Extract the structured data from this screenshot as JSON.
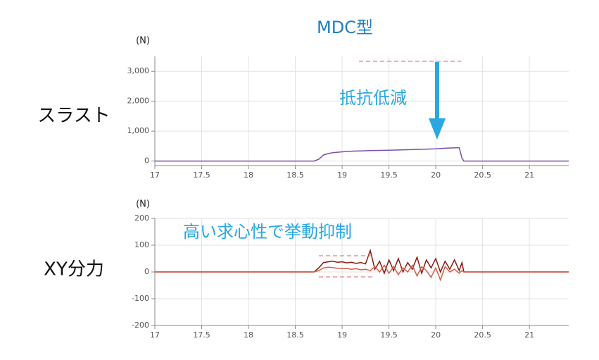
{
  "title": "MDC型",
  "chart_data": [
    {
      "type": "line",
      "label": "スラスト",
      "y_unit": "(N)",
      "annotation": "抵抗低減",
      "x": [
        17,
        18.7,
        18.75,
        18.8,
        18.85,
        18.9,
        19.0,
        19.1,
        19.2,
        19.3,
        19.5,
        19.7,
        19.8,
        20.0,
        20.1,
        20.2,
        20.25,
        20.28,
        20.3,
        21.42
      ],
      "series": [
        {
          "color": "#7b4fa8",
          "values": [
            0,
            0,
            60,
            200,
            250,
            280,
            310,
            330,
            340,
            350,
            360,
            380,
            390,
            410,
            430,
            440,
            450,
            100,
            0,
            0
          ]
        }
      ],
      "xlim": [
        17,
        21.42
      ],
      "ylim": [
        -150,
        3500
      ],
      "xticks": [
        17,
        17.5,
        18,
        18.5,
        19,
        19.5,
        20,
        20.5,
        21
      ],
      "yticks": [
        0,
        {
          "value": 1000,
          "label": "1,000"
        },
        {
          "value": 2000,
          "label": "2,000"
        },
        {
          "value": 3000,
          "label": "3,000"
        }
      ],
      "grid": true
    },
    {
      "type": "line",
      "label": "XY分力",
      "y_unit": "(N)",
      "annotation": "高い求心性で挙動抑制",
      "x": [
        17,
        18.7,
        18.75,
        18.8,
        18.85,
        18.9,
        18.95,
        19.0,
        19.05,
        19.1,
        19.15,
        19.2,
        19.25,
        19.3,
        19.35,
        19.4,
        19.45,
        19.5,
        19.55,
        19.6,
        19.65,
        19.7,
        19.75,
        19.8,
        19.85,
        19.9,
        19.95,
        20.0,
        20.05,
        20.1,
        20.15,
        20.2,
        20.25,
        20.28,
        20.3,
        21.42
      ],
      "series": [
        {
          "color": "#8b1a10",
          "values": [
            0,
            0,
            15,
            35,
            38,
            40,
            36,
            38,
            34,
            36,
            32,
            35,
            30,
            80,
            10,
            40,
            -5,
            45,
            5,
            50,
            0,
            35,
            10,
            55,
            -5,
            45,
            15,
            50,
            0,
            40,
            10,
            45,
            5,
            35,
            0,
            0
          ]
        },
        {
          "color": "#d0604a",
          "values": [
            0,
            0,
            5,
            15,
            18,
            16,
            14,
            12,
            13,
            10,
            12,
            8,
            10,
            5,
            20,
            0,
            25,
            -5,
            20,
            -10,
            15,
            0,
            25,
            -15,
            20,
            5,
            -20,
            15,
            -30,
            20,
            0,
            10,
            -5,
            5,
            0,
            0
          ]
        }
      ],
      "xlim": [
        17,
        21.42
      ],
      "ylim": [
        -200,
        200
      ],
      "xticks": [
        17,
        17.5,
        18,
        18.5,
        19,
        19.5,
        20,
        20.5,
        21
      ],
      "yticks": [
        -200,
        -100,
        0,
        100,
        200
      ],
      "grid": true
    }
  ]
}
